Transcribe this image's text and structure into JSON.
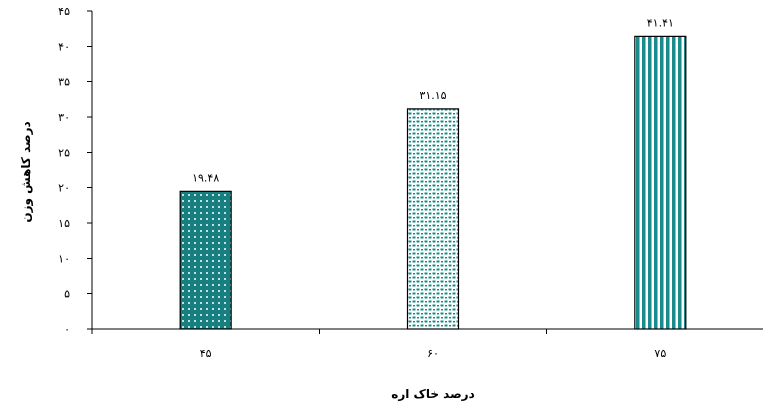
{
  "chart_data": {
    "type": "bar",
    "categories": [
      "۴۵",
      "۶۰",
      "۷۵"
    ],
    "values": [
      19.48,
      31.15,
      41.41
    ],
    "data_labels": [
      "۱۹.۴۸",
      "۳۱.۱۵",
      "۴۱.۴۱"
    ],
    "title": "",
    "xlabel": "درصد خاک اره",
    "ylabel": "درصد کاهش وزن",
    "ylim": [
      0,
      45
    ],
    "y_ticks": [
      {
        "value": 0,
        "label": "۰"
      },
      {
        "value": 5,
        "label": "۵"
      },
      {
        "value": 10,
        "label": "۱۰"
      },
      {
        "value": 15,
        "label": "۱۵"
      },
      {
        "value": 20,
        "label": "۲۰"
      },
      {
        "value": 25,
        "label": "۲۵"
      },
      {
        "value": 30,
        "label": "۳۰"
      },
      {
        "value": 35,
        "label": "۳۵"
      },
      {
        "value": 40,
        "label": "۴۰"
      },
      {
        "value": 45,
        "label": "۴۵"
      }
    ],
    "grid": false,
    "legend": "none",
    "bar_color": "#1a8a8a",
    "bar_patterns": [
      "small-dots",
      "scattered-dots",
      "vertical-stripes"
    ]
  }
}
